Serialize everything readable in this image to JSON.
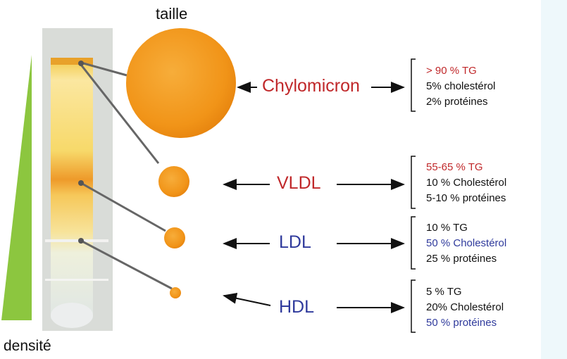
{
  "labels": {
    "size_axis": "taille",
    "density_axis": "densité"
  },
  "colors": {
    "red_label": "#c0282a",
    "blue_label": "#2f3a9c",
    "black": "#111111",
    "particle_orange": "#f29a1c",
    "density_green": "#8cc63f"
  },
  "classes": [
    {
      "name": "Chylomicron",
      "color": "#c0282a",
      "composition": [
        {
          "text": "> 90 % TG",
          "color": "#c0282a"
        },
        {
          "text": "5% cholestérol",
          "color": "#111111"
        },
        {
          "text": "2% protéines",
          "color": "#111111"
        }
      ]
    },
    {
      "name": "VLDL",
      "color": "#c0282a",
      "composition": [
        {
          "text": "55-65 % TG",
          "color": "#c0282a"
        },
        {
          "text": "10 % Cholestérol",
          "color": "#111111"
        },
        {
          "text": "5-10 % protéines",
          "color": "#111111"
        }
      ]
    },
    {
      "name": "LDL",
      "color": "#2f3a9c",
      "composition": [
        {
          "text": "10 % TG",
          "color": "#111111"
        },
        {
          "text": "50 % Cholestérol",
          "color": "#2f3a9c"
        },
        {
          "text": "25 % protéines",
          "color": "#111111"
        }
      ]
    },
    {
      "name": "HDL",
      "color": "#2f3a9c",
      "composition": [
        {
          "text": "5 % TG",
          "color": "#111111"
        },
        {
          "text": "20% Cholestérol",
          "color": "#111111"
        },
        {
          "text": "50 % protéines",
          "color": "#2f3a9c"
        }
      ]
    }
  ]
}
